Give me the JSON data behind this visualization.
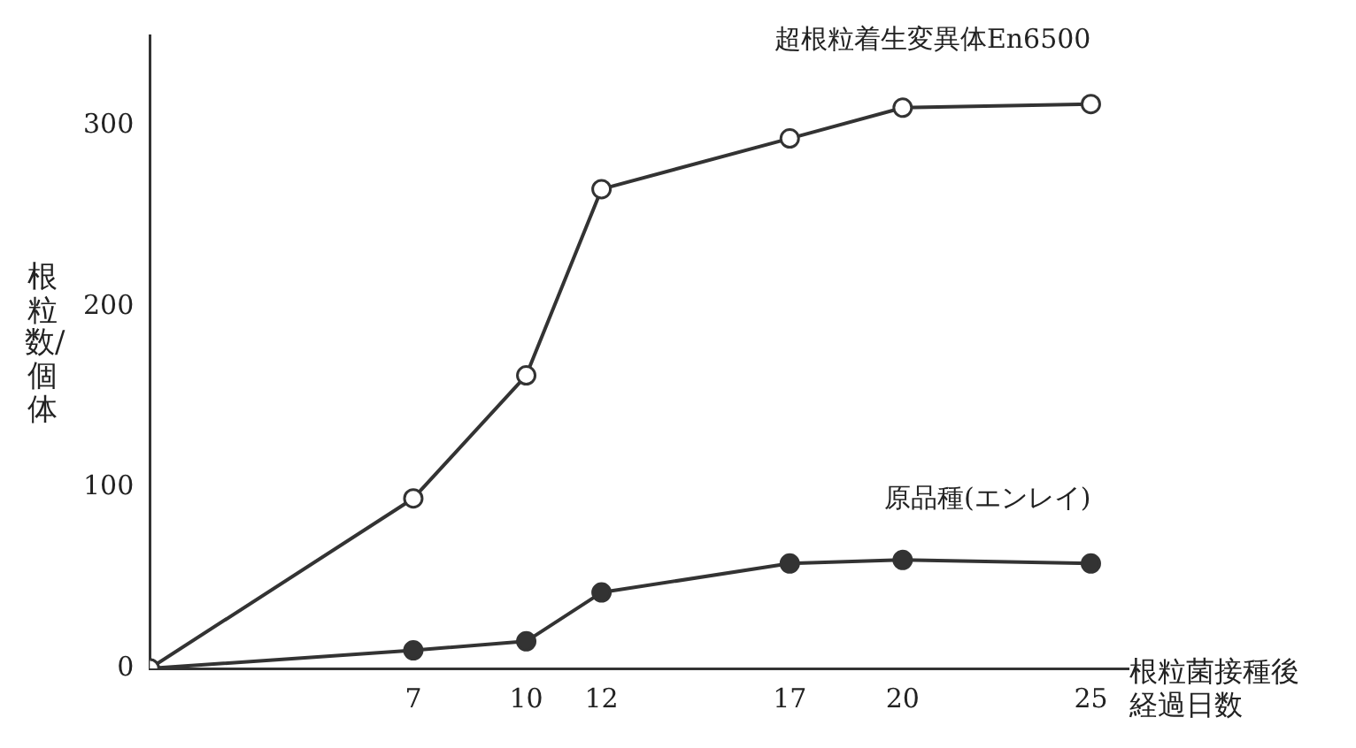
{
  "chart_data": {
    "type": "line",
    "xlabel": "根粒菌接種後経過日数",
    "ylabel": "根粒数/個体",
    "x": [
      0,
      7,
      10,
      12,
      17,
      20,
      25
    ],
    "series": [
      {
        "name": "超根粒着生変異体En6500",
        "color": "#333333",
        "values": [
          0,
          94,
          162,
          265,
          293,
          310,
          312
        ]
      },
      {
        "name": "原品種(エンレイ)",
        "color": "#333333",
        "values": [
          0,
          10,
          15,
          42,
          58,
          60,
          58
        ]
      }
    ],
    "xlim": [
      0,
      26
    ],
    "xticks": [
      7,
      10,
      12,
      17,
      20,
      25
    ],
    "ylim": [
      0,
      350
    ],
    "yticks": [
      0,
      100,
      200,
      300
    ],
    "grid": false,
    "legend": false,
    "marker": "circle",
    "line_style": "solid"
  }
}
